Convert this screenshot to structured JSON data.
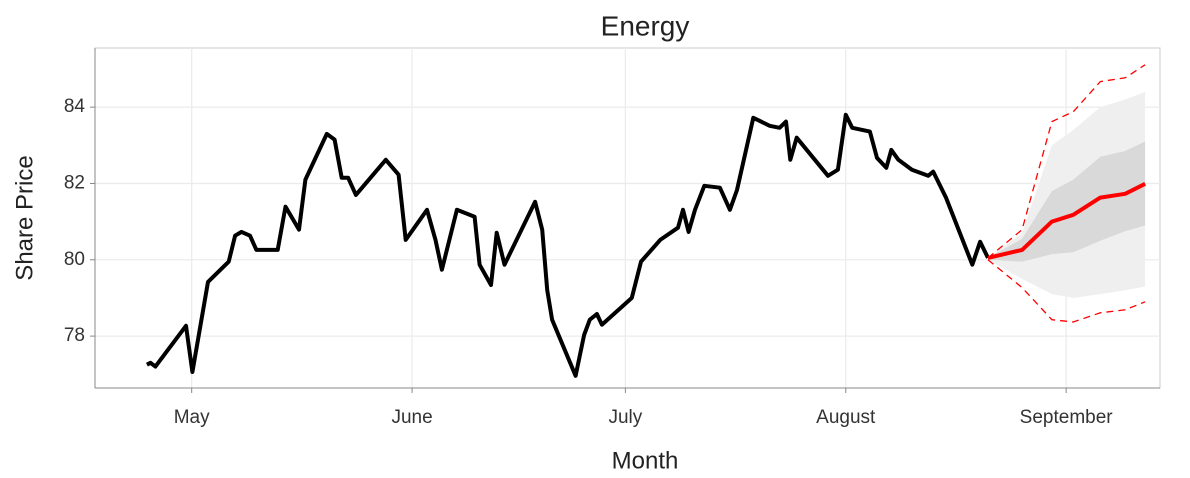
{
  "chart_data": {
    "type": "line",
    "title": "Energy",
    "x_label": "Month",
    "y_label": "Share Price",
    "xlim": [
      107.4,
      257.2
    ],
    "ylim": [
      76.64,
      85.55
    ],
    "xticks": [
      {
        "value": 121,
        "label": "May"
      },
      {
        "value": 152,
        "label": "June"
      },
      {
        "value": 182,
        "label": "July"
      },
      {
        "value": 213,
        "label": "August"
      },
      {
        "value": 244,
        "label": "September"
      }
    ],
    "yticks": [
      78,
      80,
      82,
      84
    ],
    "grid": true,
    "series": [
      {
        "color": "#000000",
        "x": [
          114.7,
          115.2,
          115.9,
          120.2,
          121.1,
          123.3,
          126.2,
          127.1,
          128.0,
          129.2,
          130.1,
          133.1,
          134.2,
          136.1,
          137.0,
          140.0,
          141.1,
          142.1,
          143.0,
          144.1,
          148.3,
          150.1,
          151.1,
          154.1,
          155.3,
          156.2,
          158.3,
          160.8,
          161.5,
          163.1,
          163.9,
          165.0,
          169.3,
          170.3,
          171.0,
          171.7,
          175.0,
          176.2,
          177.0,
          178.0,
          178.7,
          182.9,
          184.2,
          186.9,
          189.4,
          190.1,
          190.9,
          191.8,
          193.1,
          195.3,
          196.7,
          197.7,
          200.0,
          202.3,
          203.7,
          204.6,
          205.2,
          206.1,
          210.5,
          211.9,
          213.0,
          213.9,
          216.4,
          217.4,
          218.7,
          219.4,
          220.4,
          222.3,
          224.6,
          225.3,
          227.1,
          230.8,
          231.9,
          233.0
        ],
        "values": [
          77.25,
          77.3,
          77.2,
          78.27,
          77.06,
          79.42,
          79.95,
          80.63,
          80.73,
          80.63,
          80.26,
          80.26,
          81.39,
          80.79,
          82.1,
          83.3,
          83.15,
          82.15,
          82.15,
          81.7,
          82.62,
          82.23,
          80.52,
          81.31,
          80.52,
          79.74,
          81.31,
          81.13,
          79.87,
          79.34,
          80.71,
          79.87,
          81.52,
          80.79,
          79.21,
          78.43,
          76.96,
          78.03,
          78.43,
          78.58,
          78.3,
          79.0,
          79.95,
          80.52,
          80.84,
          81.31,
          80.73,
          81.31,
          81.94,
          81.89,
          81.31,
          81.83,
          83.72,
          83.51,
          83.46,
          83.62,
          82.62,
          83.2,
          82.2,
          82.36,
          83.8,
          83.46,
          83.36,
          82.67,
          82.41,
          82.88,
          82.62,
          82.36,
          82.2,
          82.31,
          81.63,
          79.87,
          80.47,
          80.05
        ]
      }
    ],
    "forecast": {
      "color": "#ff0000",
      "band_95_color": "#efefef",
      "band_80_color": "#d9d9d9",
      "x": [
        233.0,
        237.8,
        242.0,
        245.0,
        248.8,
        252.3,
        255.1
      ],
      "values": [
        80.05,
        80.26,
        81.0,
        81.18,
        81.63,
        81.73,
        81.99
      ],
      "lower_80": [
        80.0,
        79.95,
        80.15,
        80.2,
        80.5,
        80.75,
        80.9
      ],
      "upper_80": [
        80.05,
        80.55,
        81.8,
        82.1,
        82.7,
        82.85,
        83.1
      ],
      "lower_95": [
        80.0,
        79.5,
        79.1,
        79.0,
        79.1,
        79.2,
        79.3
      ],
      "upper_95": [
        80.05,
        80.7,
        83.0,
        83.4,
        84.0,
        84.2,
        84.4
      ],
      "lower_dashed": [
        80.0,
        79.27,
        78.43,
        78.37,
        78.61,
        78.69,
        78.9
      ],
      "upper_dashed": [
        80.05,
        80.79,
        83.62,
        83.88,
        84.67,
        84.77,
        85.11
      ]
    }
  }
}
